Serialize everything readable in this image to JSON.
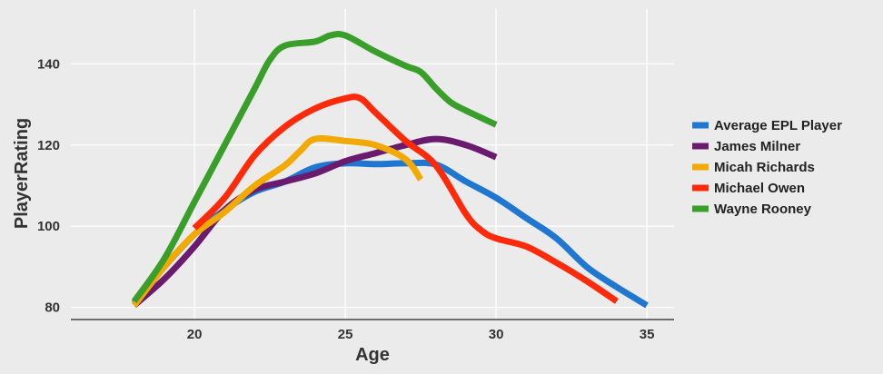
{
  "chart_data": {
    "type": "line",
    "title": "",
    "xlabel": "Age",
    "ylabel": "PlayerRating",
    "xlim": [
      15.9,
      35.9
    ],
    "ylim": [
      77,
      153.5
    ],
    "xticks": [
      20,
      25,
      30,
      35
    ],
    "yticks": [
      80,
      100,
      120,
      140
    ],
    "grid": true,
    "legend_position": "right",
    "series": [
      {
        "name": "Average EPL Player",
        "color": "#1F77D0",
        "points": [
          [
            18,
            81
          ],
          [
            19,
            90
          ],
          [
            20,
            98
          ],
          [
            21,
            104
          ],
          [
            22,
            108.5
          ],
          [
            23,
            111
          ],
          [
            24,
            114.5
          ],
          [
            25,
            115.5
          ],
          [
            26,
            115.3
          ],
          [
            27,
            115.5
          ],
          [
            28,
            115.2
          ],
          [
            29,
            111
          ],
          [
            30,
            107
          ],
          [
            31,
            102
          ],
          [
            32,
            97
          ],
          [
            33,
            90
          ],
          [
            34,
            85
          ],
          [
            35,
            80.5
          ]
        ]
      },
      {
        "name": "James Milner",
        "color": "#6B1B6E",
        "points": [
          [
            18,
            80.5
          ],
          [
            19,
            87
          ],
          [
            20,
            95
          ],
          [
            21,
            104
          ],
          [
            22,
            109
          ],
          [
            23,
            111
          ],
          [
            24,
            113
          ],
          [
            25,
            116
          ],
          [
            26,
            118
          ],
          [
            27,
            120
          ],
          [
            28,
            121.5
          ],
          [
            29,
            120
          ],
          [
            30,
            117
          ]
        ]
      },
      {
        "name": "Micah Richards",
        "color": "#F2A900",
        "points": [
          [
            18,
            80.5
          ],
          [
            19,
            90
          ],
          [
            20,
            98
          ],
          [
            21,
            103.5
          ],
          [
            22,
            110
          ],
          [
            23,
            115
          ],
          [
            23.5,
            118.5
          ],
          [
            24,
            121.5
          ],
          [
            25,
            121
          ],
          [
            26,
            120
          ],
          [
            27,
            116.5
          ],
          [
            27.5,
            111.5
          ]
        ]
      },
      {
        "name": "Michael Owen",
        "color": "#FF2A0A",
        "points": [
          [
            20,
            99.5
          ],
          [
            21,
            107
          ],
          [
            22,
            117.5
          ],
          [
            23,
            124.5
          ],
          [
            24,
            129
          ],
          [
            25,
            131.5
          ],
          [
            25.5,
            131.5
          ],
          [
            26,
            128
          ],
          [
            27,
            121
          ],
          [
            28,
            115
          ],
          [
            29,
            103
          ],
          [
            29.5,
            99
          ],
          [
            30,
            97
          ],
          [
            31,
            95
          ],
          [
            32,
            91
          ],
          [
            33,
            86.5
          ],
          [
            34,
            81.5
          ]
        ]
      },
      {
        "name": "Wayne Rooney",
        "color": "#3A9F2A",
        "points": [
          [
            18,
            81.5
          ],
          [
            19,
            92
          ],
          [
            20,
            106
          ],
          [
            21,
            120
          ],
          [
            22,
            134
          ],
          [
            22.5,
            141
          ],
          [
            23,
            144.5
          ],
          [
            24,
            145.5
          ],
          [
            24.5,
            147
          ],
          [
            25,
            147
          ],
          [
            26,
            143
          ],
          [
            27,
            139.5
          ],
          [
            27.5,
            138
          ],
          [
            28,
            134
          ],
          [
            28.5,
            130.5
          ],
          [
            29,
            128.5
          ],
          [
            30,
            125
          ]
        ]
      }
    ]
  }
}
